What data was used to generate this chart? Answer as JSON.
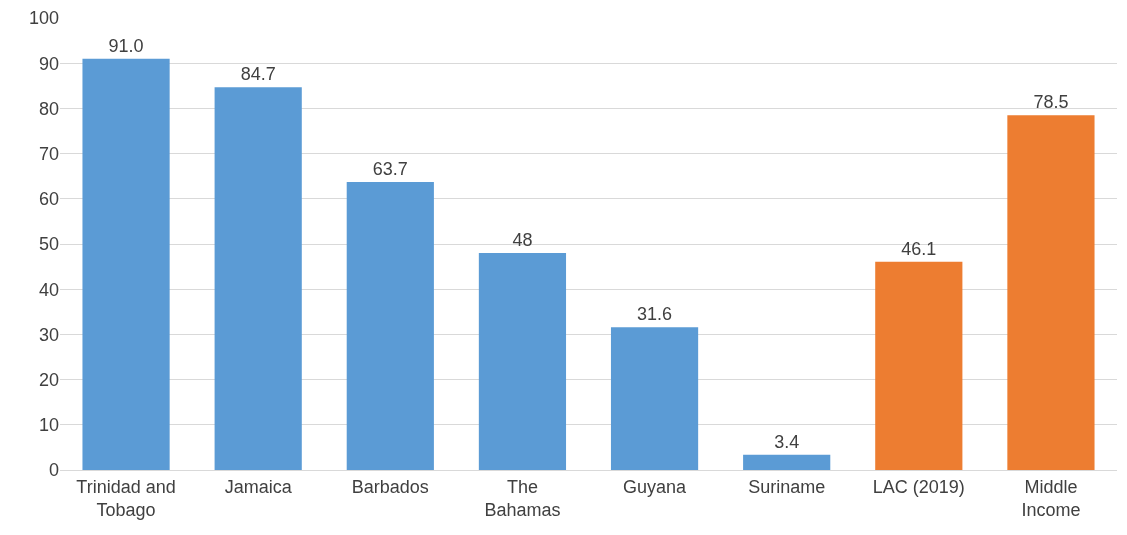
{
  "chart_data": {
    "type": "bar",
    "categories": [
      "Trinidad and\nTobago",
      "Jamaica",
      "Barbados",
      "The\nBahamas",
      "Guyana",
      "Suriname",
      "LAC (2019)",
      "Middle\nIncome"
    ],
    "values": [
      91.0,
      84.7,
      63.7,
      48,
      31.6,
      3.4,
      46.1,
      78.5
    ],
    "value_labels": [
      "91.0",
      "84.7",
      "63.7",
      "48",
      "31.6",
      "3.4",
      "46.1",
      "78.5"
    ],
    "colors": [
      "#5b9bd5",
      "#5b9bd5",
      "#5b9bd5",
      "#5b9bd5",
      "#5b9bd5",
      "#5b9bd5",
      "#ed7d31",
      "#ed7d31"
    ],
    "ylim": [
      0,
      100
    ],
    "yticks": [
      0,
      10,
      20,
      30,
      40,
      50,
      60,
      70,
      80,
      90,
      100
    ],
    "grid": "y"
  }
}
